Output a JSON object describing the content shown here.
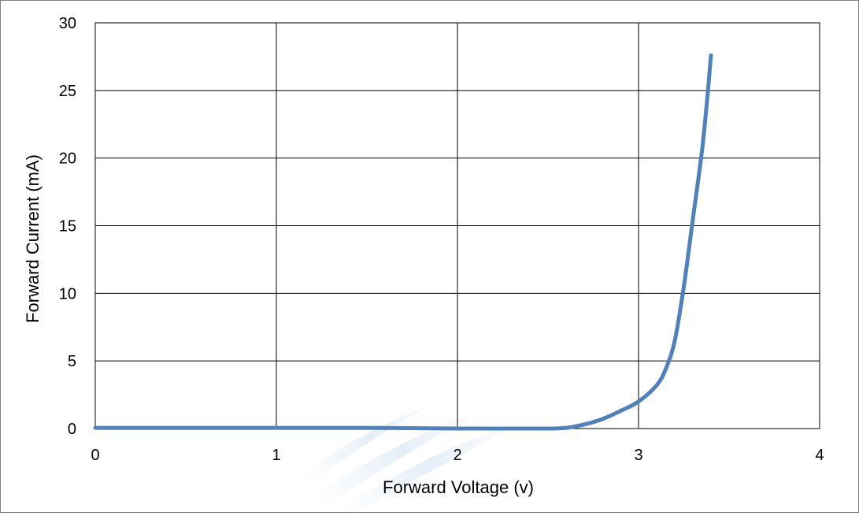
{
  "chart_data": {
    "type": "line",
    "title": "",
    "xlabel": "Forward Voltage (v)",
    "ylabel": "Forward Current (mA)",
    "xlim": [
      0,
      4
    ],
    "ylim": [
      0,
      30
    ],
    "x_ticks": [
      "0",
      "1",
      "2",
      "3",
      "4"
    ],
    "y_ticks": [
      "0",
      "5",
      "10",
      "15",
      "20",
      "25",
      "30"
    ],
    "grid": true,
    "legend": "none",
    "series": [
      {
        "color": "#4f81bd",
        "x": [
          0,
          0.5,
          1.0,
          1.5,
          2.0,
          2.3,
          2.5,
          2.6,
          2.7,
          2.8,
          2.9,
          3.0,
          3.1,
          3.15,
          3.2,
          3.25,
          3.3,
          3.35,
          3.38,
          3.4
        ],
        "y": [
          0.05,
          0.05,
          0.05,
          0.05,
          0.0,
          0.0,
          0.0,
          0.05,
          0.3,
          0.7,
          1.3,
          2.0,
          3.2,
          4.4,
          6.5,
          10.5,
          15.5,
          20.5,
          24.5,
          27.6
        ]
      }
    ]
  }
}
